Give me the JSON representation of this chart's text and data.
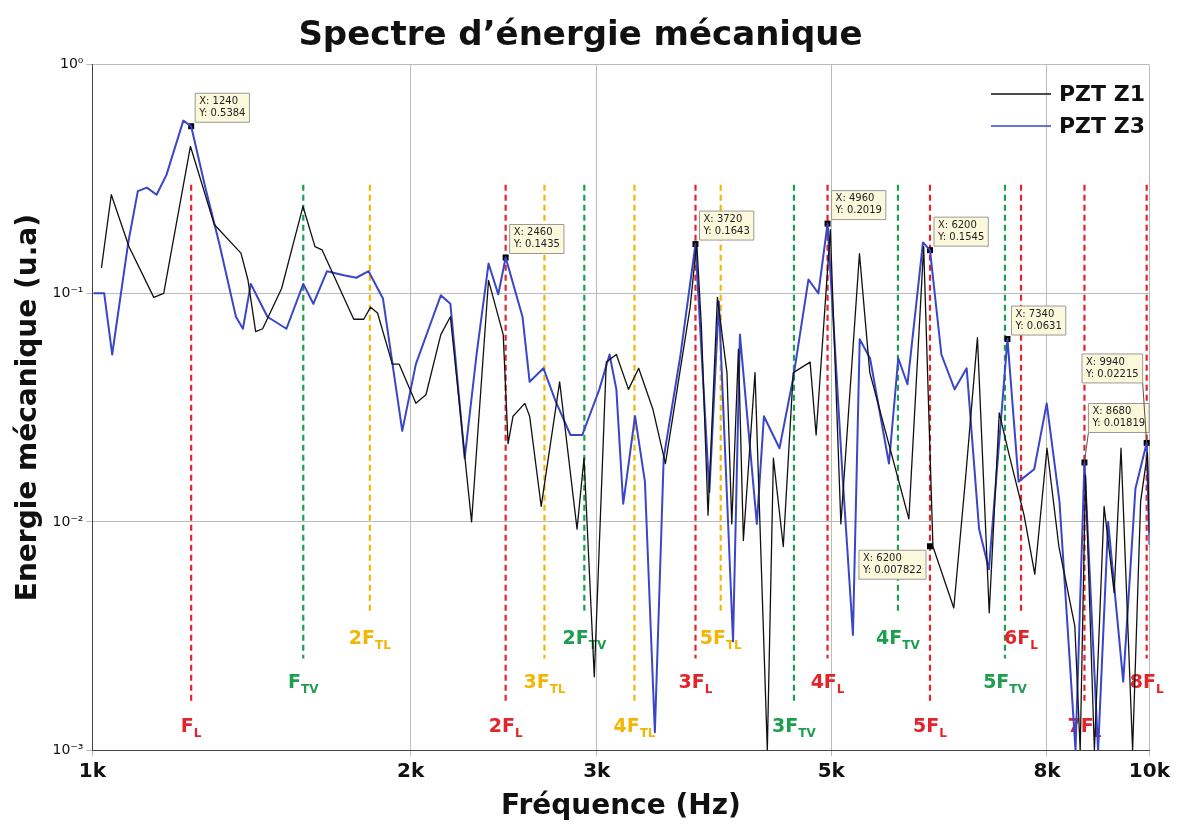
{
  "chart_data": {
    "type": "line",
    "title": "Spectre d’énergie mécanique",
    "xlabel": "Fréquence (Hz)",
    "ylabel": "Energie mécanique (u.a)",
    "log": "xy",
    "grid": true,
    "legend": "top right",
    "marker": "none",
    "line_style": "solid",
    "xlim": [
      1000,
      10000
    ],
    "xticks": [
      {
        "value": 1000,
        "label": "1k"
      },
      {
        "value": 2000,
        "label": "2k"
      },
      {
        "value": 3000,
        "label": "3k"
      },
      {
        "value": 5000,
        "label": "5k"
      },
      {
        "value": 8000,
        "label": "8k"
      },
      {
        "value": 10000,
        "label": "10k"
      }
    ],
    "ylim": [
      0.001,
      1
    ],
    "yticks": [
      {
        "value": 0.001,
        "label": "10⁻³"
      },
      {
        "value": 0.01,
        "label": "10⁻²"
      },
      {
        "value": 0.1,
        "label": "10⁻¹"
      },
      {
        "value": 1,
        "label": "10⁰"
      }
    ],
    "series": [
      {
        "name": "PZT Z1",
        "color": "#111111",
        "x": [
          1020,
          1042,
          1083,
          1143,
          1168,
          1238,
          1304,
          1382,
          1403,
          1427,
          1449,
          1510,
          1582,
          1624,
          1649,
          1767,
          1806,
          1833,
          1861,
          1922,
          1951,
          2023,
          2068,
          2136,
          2181,
          2284,
          2370,
          2447,
          2473,
          2500,
          2565,
          2592,
          2658,
          2767,
          2874,
          2918,
          2984,
          3063,
          3131,
          3215,
          3287,
          3391,
          3484,
          3677,
          3730,
          3768,
          3823,
          3902,
          3984,
          4026,
          4085,
          4129,
          4235,
          4350,
          4408,
          4504,
          4603,
          4775,
          4838,
          4990,
          5106,
          5317,
          5438,
          5921,
          6115,
          6240,
          6530,
          6700,
          6875,
          7054,
          7210,
          7360,
          7610,
          7790,
          8000,
          8210,
          8500,
          8600,
          8700,
          8870,
          9060,
          9260,
          9400,
          9640,
          9810,
          9957,
          10000
        ],
        "values": [
          0.13,
          0.27,
          0.16,
          0.096,
          0.1,
          0.44,
          0.2,
          0.15,
          0.115,
          0.068,
          0.07,
          0.105,
          0.24,
          0.16,
          0.155,
          0.077,
          0.077,
          0.087,
          0.082,
          0.049,
          0.049,
          0.033,
          0.036,
          0.066,
          0.079,
          0.01,
          0.114,
          0.066,
          0.022,
          0.029,
          0.033,
          0.029,
          0.0117,
          0.041,
          0.0093,
          0.019,
          0.0021,
          0.05,
          0.054,
          0.038,
          0.047,
          0.031,
          0.018,
          0.087,
          0.167,
          0.072,
          0.0107,
          0.096,
          0.045,
          0.0098,
          0.057,
          0.0083,
          0.045,
          0.001,
          0.019,
          0.0078,
          0.045,
          0.05,
          0.024,
          0.19,
          0.0098,
          0.149,
          0.045,
          0.0103,
          0.16,
          0.0078,
          0.0042,
          0.0156,
          0.064,
          0.004,
          0.03,
          0.02,
          0.0107,
          0.0059,
          0.021,
          0.0078,
          0.0035,
          0.001,
          0.016,
          0.001,
          0.0117,
          0.0049,
          0.021,
          0.001,
          0.0123,
          0.02,
          0.009
        ]
      },
      {
        "name": "PZT Z3",
        "color": "#3a46c8",
        "x": [
          1004,
          1026,
          1044,
          1081,
          1104,
          1126,
          1150,
          1175,
          1219,
          1240,
          1279,
          1318,
          1367,
          1388,
          1412,
          1464,
          1526,
          1583,
          1618,
          1667,
          1729,
          1777,
          1825,
          1883,
          1964,
          2023,
          2100,
          2136,
          2181,
          2250,
          2309,
          2370,
          2421,
          2460,
          2552,
          2592,
          2671,
          2741,
          2833,
          2907,
          3017,
          3085,
          3131,
          3178,
          3261,
          3332,
          3405,
          3471,
          3601,
          3720,
          3834,
          3914,
          4037,
          4098,
          4252,
          4318,
          4467,
          4604,
          4758,
          4862,
          4960,
          5126,
          5242,
          5320,
          5441,
          5670,
          5786,
          5903,
          6106,
          6200,
          6356,
          6542,
          6716,
          6900,
          7049,
          7340,
          7520,
          7780,
          7995,
          8220,
          8513,
          8680,
          8942,
          9140,
          9445,
          9700,
          9940,
          10000
        ],
        "values": [
          0.1,
          0.1,
          0.054,
          0.166,
          0.28,
          0.29,
          0.27,
          0.33,
          0.57,
          0.5384,
          0.29,
          0.166,
          0.079,
          0.07,
          0.11,
          0.079,
          0.07,
          0.11,
          0.09,
          0.125,
          0.12,
          0.117,
          0.125,
          0.095,
          0.025,
          0.049,
          0.079,
          0.098,
          0.09,
          0.019,
          0.054,
          0.135,
          0.099,
          0.1435,
          0.079,
          0.041,
          0.047,
          0.034,
          0.024,
          0.024,
          0.038,
          0.054,
          0.038,
          0.012,
          0.029,
          0.015,
          0.0012,
          0.019,
          0.054,
          0.1643,
          0.0135,
          0.092,
          0.003,
          0.066,
          0.0098,
          0.029,
          0.021,
          0.043,
          0.115,
          0.1,
          0.2019,
          0.0156,
          0.0032,
          0.063,
          0.052,
          0.018,
          0.052,
          0.04,
          0.167,
          0.1545,
          0.054,
          0.038,
          0.047,
          0.0093,
          0.0062,
          0.0631,
          0.015,
          0.017,
          0.033,
          0.0123,
          0.001,
          0.01819,
          0.001,
          0.01,
          0.002,
          0.014,
          0.02215,
          0.008
        ]
      }
    ],
    "ref_lines": [
      {
        "axis": "x",
        "value": 1240,
        "label": "F$_{L}$",
        "color": "#e3242b",
        "line_style": "dashed"
      },
      {
        "axis": "x",
        "value": 1583,
        "label": "F$_{TV}$",
        "color": "#1e9e4f",
        "line_style": "dashed"
      },
      {
        "axis": "x",
        "value": 1830,
        "label": "2F$_{TL}$",
        "color": "#f2b705",
        "line_style": "dashed"
      },
      {
        "axis": "x",
        "value": 2460,
        "label": "2F$_{L}$",
        "color": "#e3242b",
        "line_style": "dashed"
      },
      {
        "axis": "x",
        "value": 2677,
        "label": "3F$_{TL}$",
        "color": "#f2b705",
        "line_style": "dashed"
      },
      {
        "axis": "x",
        "value": 2920,
        "label": "2F$_{TV}$",
        "color": "#1e9e4f",
        "line_style": "dashed"
      },
      {
        "axis": "x",
        "value": 3257,
        "label": "4F$_{TL}$",
        "color": "#f2b705",
        "line_style": "dashed"
      },
      {
        "axis": "x",
        "value": 3720,
        "label": "3F$_{L}$",
        "color": "#e3242b",
        "line_style": "dashed"
      },
      {
        "axis": "x",
        "value": 3930,
        "label": "5F$_{TL}$",
        "color": "#f2b705",
        "line_style": "dashed"
      },
      {
        "axis": "x",
        "value": 4610,
        "label": "3F$_{TV}$",
        "color": "#1e9e4f",
        "line_style": "dashed"
      },
      {
        "axis": "x",
        "value": 4960,
        "label": "4F$_{L}$",
        "color": "#e3242b",
        "line_style": "dashed"
      },
      {
        "axis": "x",
        "value": 5782,
        "label": "4F$_{TV}$",
        "color": "#1e9e4f",
        "line_style": "dashed"
      },
      {
        "axis": "x",
        "value": 6200,
        "label": "5F$_{L}$",
        "color": "#e3242b",
        "line_style": "dashed"
      },
      {
        "axis": "x",
        "value": 7300,
        "label": "5F$_{TV}$",
        "color": "#1e9e4f",
        "line_style": "dashed"
      },
      {
        "axis": "x",
        "value": 7560,
        "label": "6F$_{L}$",
        "color": "#e3242b",
        "line_style": "dashed"
      },
      {
        "axis": "x",
        "value": 8680,
        "label": "7F$_{L}$",
        "color": "#e3242b",
        "line_style": "dashed"
      },
      {
        "axis": "x",
        "value": 9940,
        "label": "8F$_{L}$",
        "color": "#e3242b",
        "line_style": "dashed"
      }
    ],
    "annotations": [
      {
        "text": "X: 1240\nY: 0.5384",
        "x": 1240,
        "y": 0.5384
      },
      {
        "text": "X: 2460\nY: 0.1435",
        "x": 2460,
        "y": 0.1435
      },
      {
        "text": "X: 3720\nY: 0.1643",
        "x": 3720,
        "y": 0.1643
      },
      {
        "text": "X: 4960\nY: 0.2019",
        "x": 4960,
        "y": 0.2019
      },
      {
        "text": "X: 6200\nY: 0.1545",
        "x": 6200,
        "y": 0.1545
      },
      {
        "text": "X: 6200\nY: 0.007822",
        "x": 6200,
        "y": 0.007822
      },
      {
        "text": "X: 7340\nY: 0.0631",
        "x": 7340,
        "y": 0.0631
      },
      {
        "text": "X: 8680\nY: 0.01819",
        "x": 8680,
        "y": 0.01819
      },
      {
        "text": "X: 9940\nY: 0.02215",
        "x": 9940,
        "y": 0.02215
      }
    ]
  }
}
